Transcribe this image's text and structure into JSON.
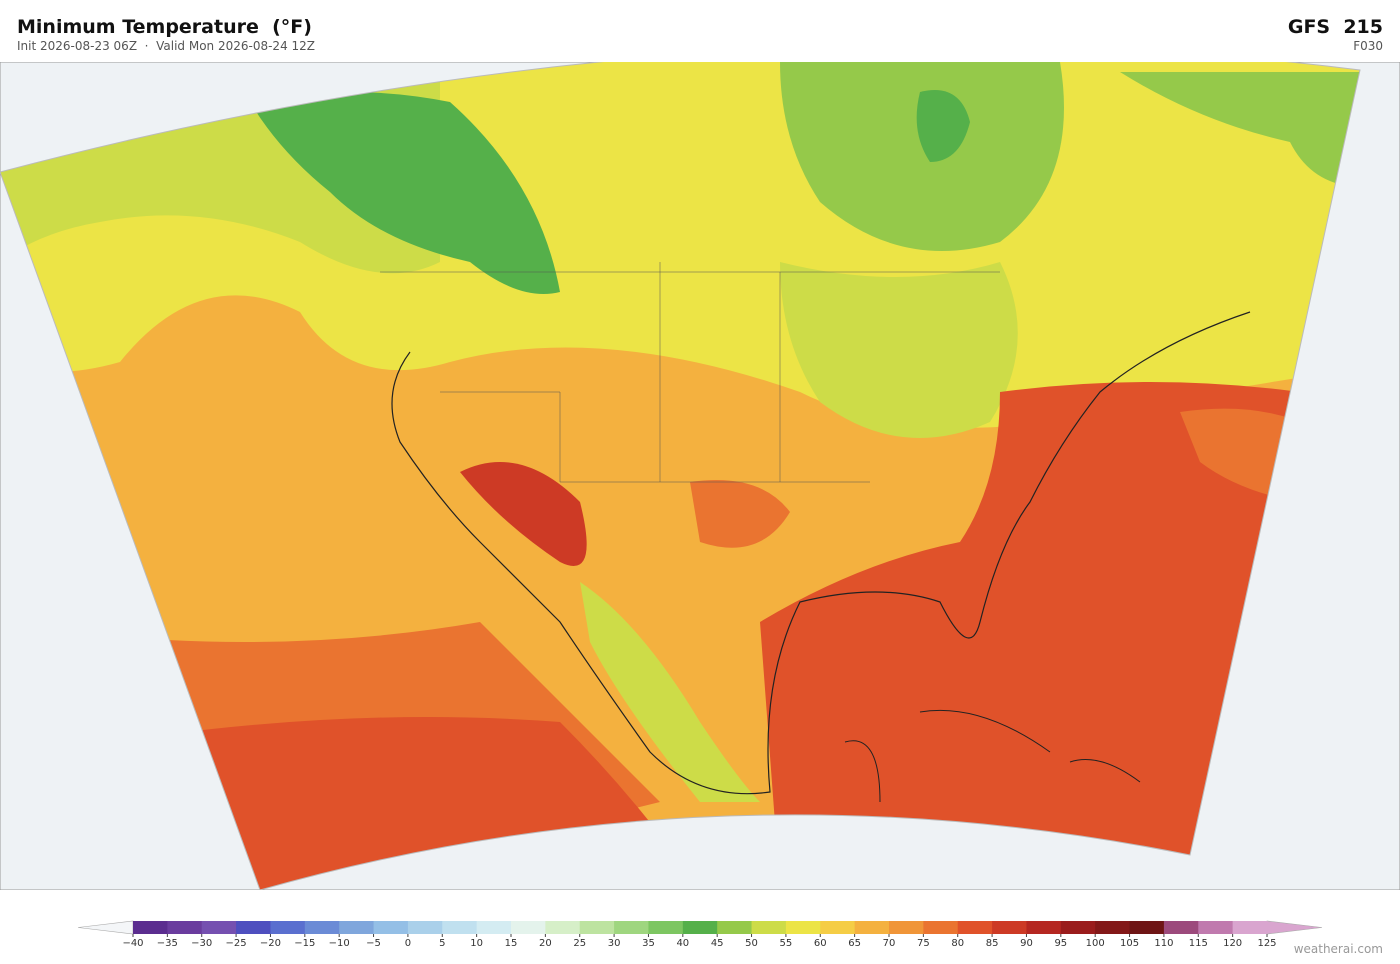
{
  "header": {
    "title": "Minimum Temperature  (°F)",
    "subtitle": "Init 2026-08-23 06Z  ·  Valid Mon 2026-08-24 12Z",
    "model": "GFS  215",
    "forecast_hour": "F030"
  },
  "colorbar": {
    "labels": [
      "−40",
      "−35",
      "−30",
      "−25",
      "−20",
      "−15",
      "−10",
      "−5",
      "0",
      "5",
      "10",
      "15",
      "20",
      "25",
      "30",
      "35",
      "40",
      "45",
      "50",
      "55",
      "60",
      "65",
      "70",
      "75",
      "80",
      "85",
      "90",
      "95",
      "100",
      "105",
      "110",
      "115",
      "120",
      "125"
    ],
    "colors": [
      "#5b2d8f",
      "#6a3c9e",
      "#7550b0",
      "#4e4fbf",
      "#5a6fcf",
      "#6b8bd6",
      "#7fa6dc",
      "#94bfe6",
      "#aad0ea",
      "#c0e0ef",
      "#d4ecf2",
      "#e4f3ec",
      "#d6efc8",
      "#bde3a0",
      "#9fd67f",
      "#7dc661",
      "#55b04a",
      "#95c94a",
      "#cddc48",
      "#ece446",
      "#f5cd45",
      "#f4b13f",
      "#f09538",
      "#ea7430",
      "#e0522a",
      "#cd3a25",
      "#b52721",
      "#9a1c1c",
      "#831818",
      "#6e1515",
      "#9c4a7c",
      "#c07aae",
      "#d9a5cf"
    ],
    "under_color": "#f4f6f8",
    "over_color": "#d9a5cf"
  },
  "footer": {
    "credit": "weatherai.com"
  }
}
